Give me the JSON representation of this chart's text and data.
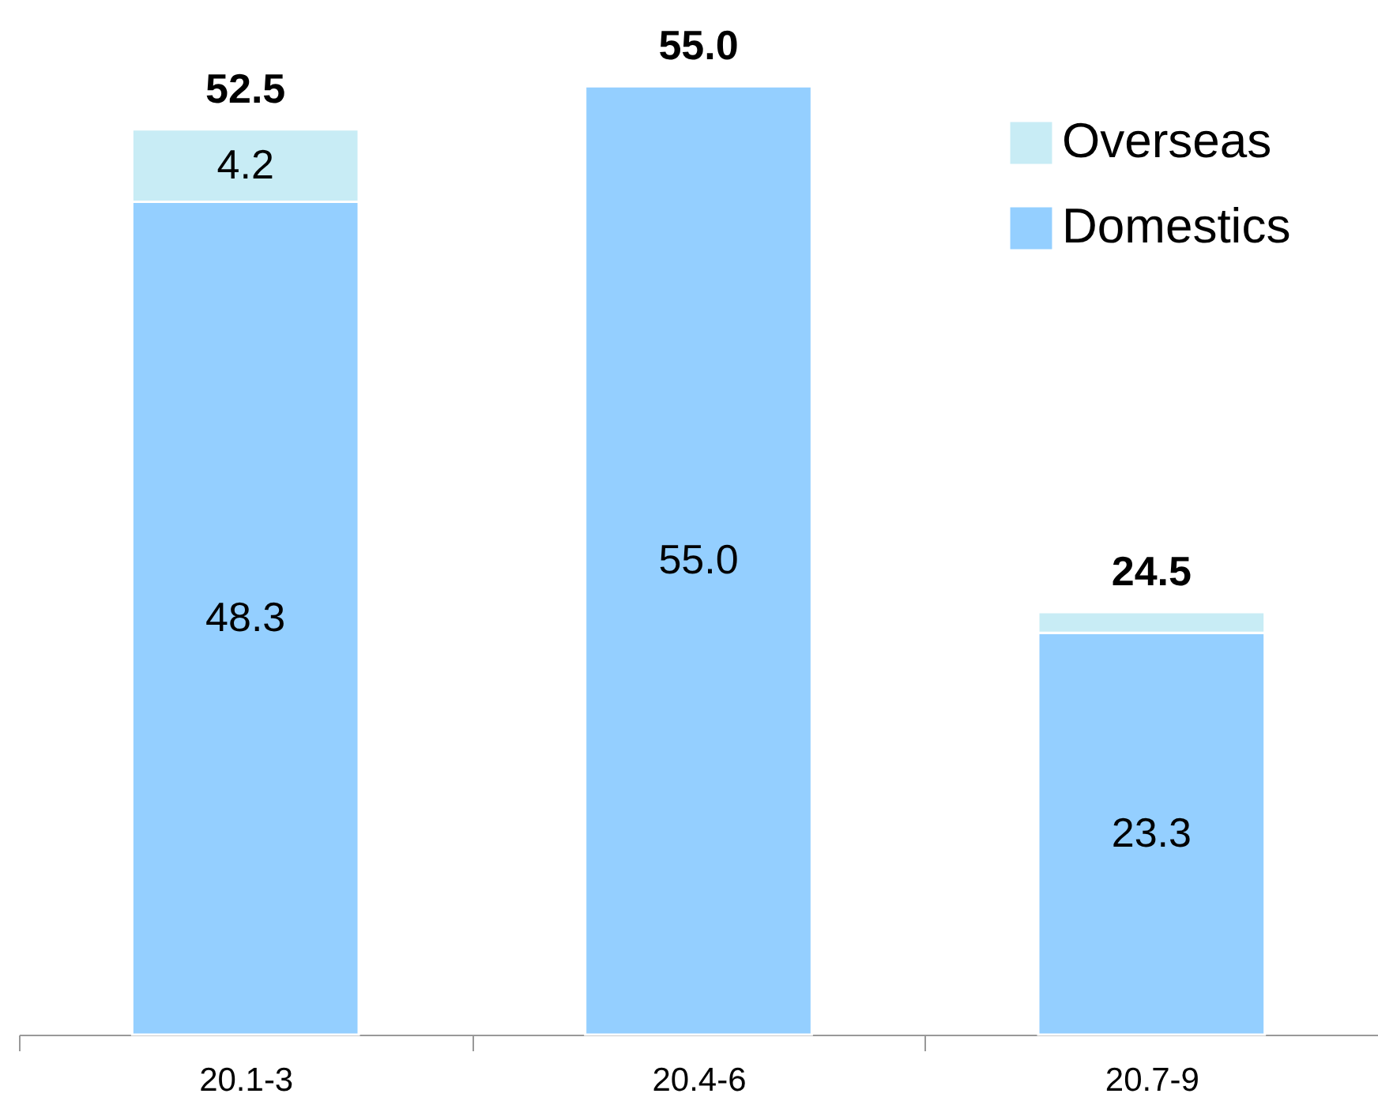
{
  "chart_data": {
    "type": "bar",
    "stacked": true,
    "categories": [
      "20.1-3",
      "20.4-6",
      "20.7-9"
    ],
    "series": [
      {
        "name": "Domestics",
        "color": "#94cfff",
        "values": [
          48.3,
          55.0,
          23.3
        ],
        "value_labels": [
          "48.3",
          "55.0",
          "23.3"
        ]
      },
      {
        "name": "Overseas",
        "color": "#c8ecf5",
        "values": [
          4.2,
          null,
          1.2
        ],
        "value_labels": [
          "4.2",
          null,
          null
        ]
      }
    ],
    "totals": [
      "52.5",
      "55.0",
      "24.5"
    ],
    "ylim": [
      0,
      60
    ],
    "tick_labels": "x",
    "legend": "top right",
    "grid": false
  }
}
